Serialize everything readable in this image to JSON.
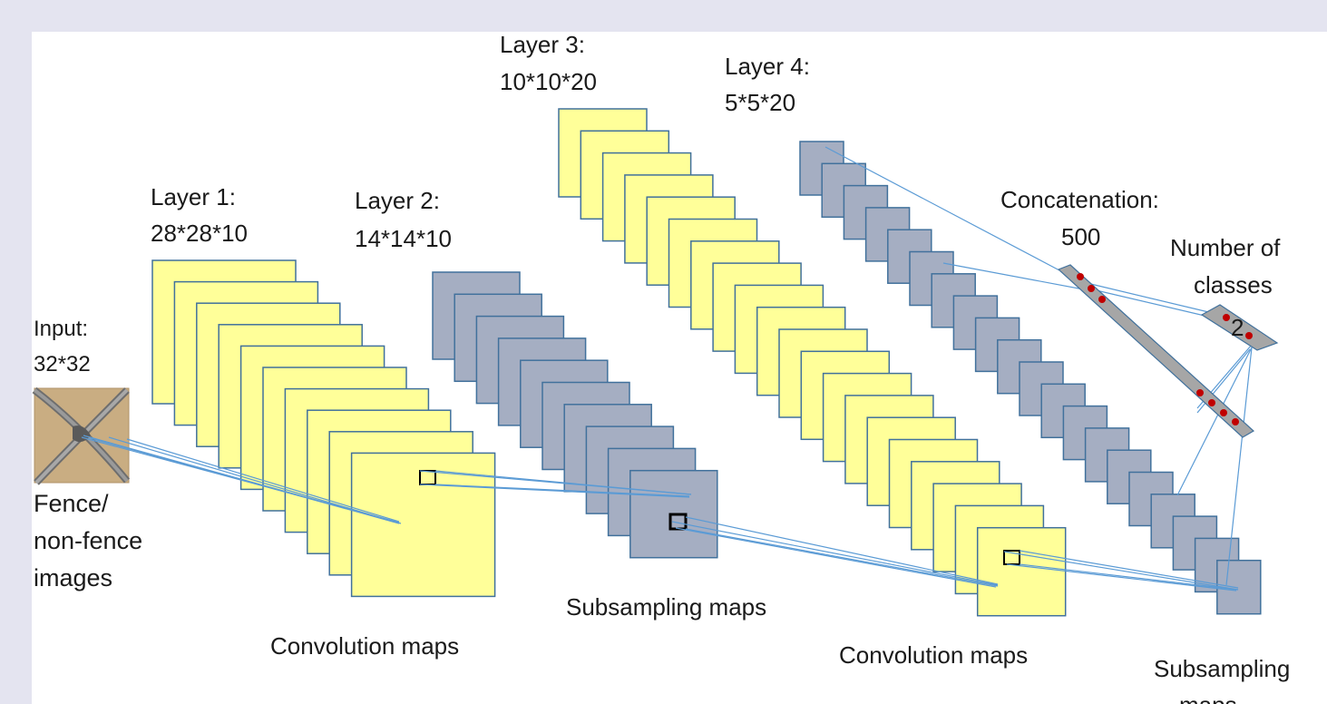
{
  "labels": {
    "input_title": "Input:",
    "input_size": "32*32",
    "input_caption_1": "Fence/",
    "input_caption_2": "non-fence",
    "input_caption_3": "images",
    "layer1_title": "Layer 1:",
    "layer1_size": "28*28*10",
    "layer2_title": "Layer 2:",
    "layer2_size": "14*14*10",
    "layer3_title": "Layer 3:",
    "layer3_size": "10*10*20",
    "layer4_title": "Layer 4:",
    "layer4_size": "5*5*20",
    "concat_title": "Concatenation:",
    "concat_size": "500",
    "classes_title_1": "Number of",
    "classes_title_2": "classes",
    "classes_count": "2",
    "conv_maps_1": "Convolution maps",
    "subsampling_maps_1": "Subsampling maps",
    "conv_maps_2": "Convolution maps",
    "subsampling_maps_2_line1": "Subsampling",
    "subsampling_maps_2_line2": "maps"
  },
  "colors": {
    "background": "#e4e4f0",
    "panel": "#ffffff",
    "convolution_map_fill": "#ffff99",
    "subsampling_map_fill": "#a5aec2",
    "map_border": "#41719c",
    "connection_line": "#5b9bd5",
    "vector_fill": "#a6a6a6",
    "neuron_dot": "#c00000"
  },
  "layers": [
    {
      "name": "Layer 1",
      "type": "convolution",
      "map_count": 10
    },
    {
      "name": "Layer 2",
      "type": "subsampling",
      "map_count": 10
    },
    {
      "name": "Layer 3",
      "type": "convolution",
      "map_count": 20
    },
    {
      "name": "Layer 4",
      "type": "subsampling",
      "map_count": 20
    }
  ]
}
